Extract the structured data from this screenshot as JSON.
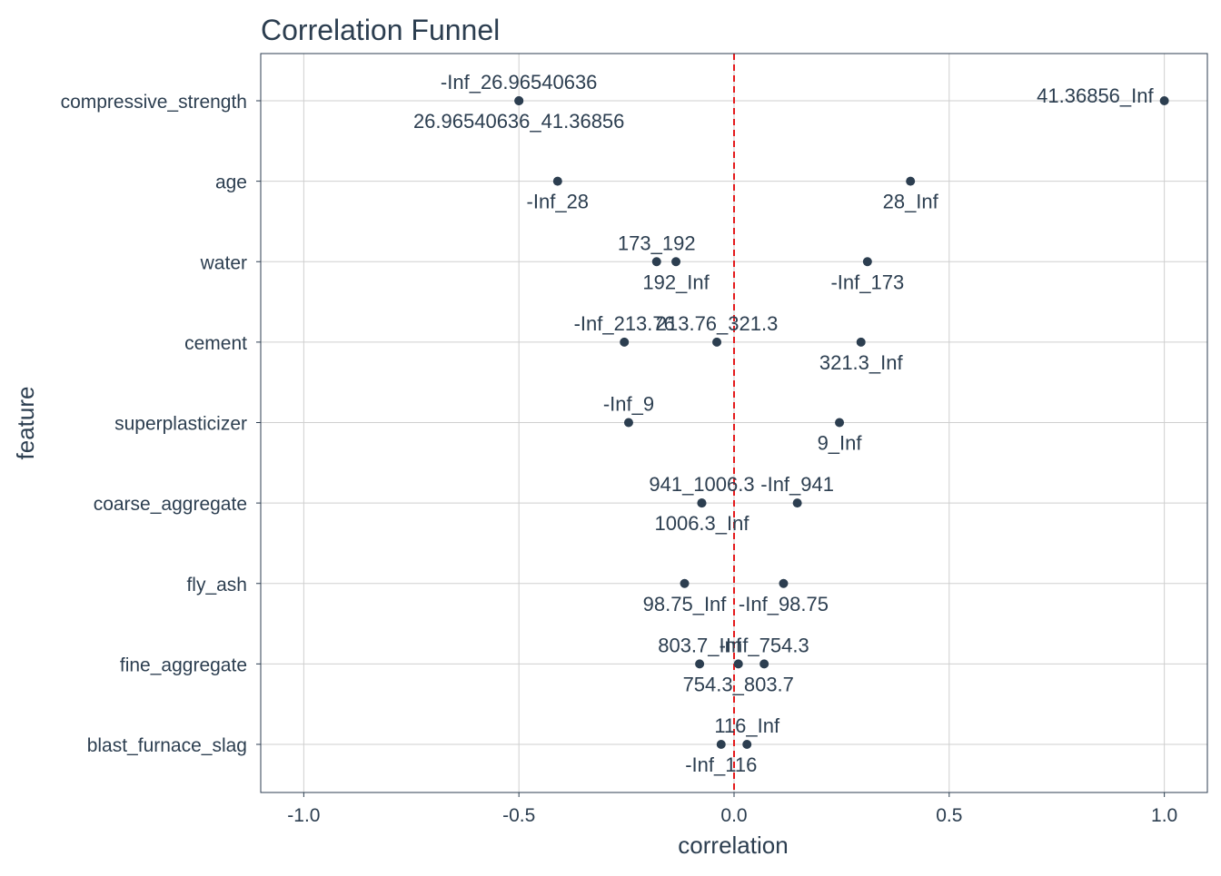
{
  "chart_data": {
    "type": "scatter",
    "title": "Correlation Funnel",
    "xlabel": "correlation",
    "ylabel": "feature",
    "xlim": [
      -1.1,
      1.1
    ],
    "x_ticks": [
      -1.0,
      -0.5,
      0.0,
      0.5,
      1.0
    ],
    "x_tick_labels": [
      "-1.0",
      "-0.5",
      "0.0",
      "0.5",
      "1.0"
    ],
    "features": [
      "compressive_strength",
      "age",
      "water",
      "cement",
      "superplasticizer",
      "coarse_aggregate",
      "fly_ash",
      "fine_aggregate",
      "blast_furnace_slag"
    ],
    "reference_line": {
      "x": 0,
      "color": "#e41a1c",
      "style": "dashed"
    },
    "grid": true,
    "point_color": "#2c3e50",
    "points": [
      {
        "feature": "compressive_strength",
        "label": "-Inf_26.96540636",
        "x": -0.5,
        "label_pos": "above"
      },
      {
        "feature": "compressive_strength",
        "label": "26.96540636_41.36856",
        "x": -0.5,
        "label_pos": "below"
      },
      {
        "feature": "compressive_strength",
        "label": "41.36856_Inf",
        "x": 1.0,
        "label_pos": "left"
      },
      {
        "feature": "age",
        "label": "-Inf_28",
        "x": -0.41,
        "label_pos": "below"
      },
      {
        "feature": "age",
        "label": "28_Inf",
        "x": 0.41,
        "label_pos": "below"
      },
      {
        "feature": "water",
        "label": "173_192",
        "x": -0.18,
        "label_pos": "above"
      },
      {
        "feature": "water",
        "label": "192_Inf",
        "x": -0.135,
        "label_pos": "below"
      },
      {
        "feature": "water",
        "label": "-Inf_173",
        "x": 0.31,
        "label_pos": "below"
      },
      {
        "feature": "cement",
        "label": "-Inf_213.76",
        "x": -0.255,
        "label_pos": "above"
      },
      {
        "feature": "cement",
        "label": "213.76_321.3",
        "x": -0.04,
        "label_pos": "above"
      },
      {
        "feature": "cement",
        "label": "321.3_Inf",
        "x": 0.295,
        "label_pos": "below"
      },
      {
        "feature": "superplasticizer",
        "label": "-Inf_9",
        "x": -0.245,
        "label_pos": "above"
      },
      {
        "feature": "superplasticizer",
        "label": "9_Inf",
        "x": 0.245,
        "label_pos": "below"
      },
      {
        "feature": "coarse_aggregate",
        "label": "941_1006.3",
        "x": -0.075,
        "label_pos": "above"
      },
      {
        "feature": "coarse_aggregate",
        "label": "1006.3_Inf",
        "x": -0.075,
        "label_pos": "below"
      },
      {
        "feature": "coarse_aggregate",
        "label": "-Inf_941",
        "x": 0.147,
        "label_pos": "above"
      },
      {
        "feature": "fly_ash",
        "label": "98.75_Inf",
        "x": -0.115,
        "label_pos": "below"
      },
      {
        "feature": "fly_ash",
        "label": "-Inf_98.75",
        "x": 0.115,
        "label_pos": "below"
      },
      {
        "feature": "fine_aggregate",
        "label": "803.7_Inf",
        "x": -0.08,
        "label_pos": "above"
      },
      {
        "feature": "fine_aggregate",
        "label": "754.3_803.7",
        "x": 0.01,
        "label_pos": "below"
      },
      {
        "feature": "fine_aggregate",
        "label": "-Inf_754.3",
        "x": 0.07,
        "label_pos": "above"
      },
      {
        "feature": "blast_furnace_slag",
        "label": "-Inf_116",
        "x": -0.03,
        "label_pos": "below"
      },
      {
        "feature": "blast_furnace_slag",
        "label": "116_Inf",
        "x": 0.03,
        "label_pos": "above"
      }
    ]
  }
}
